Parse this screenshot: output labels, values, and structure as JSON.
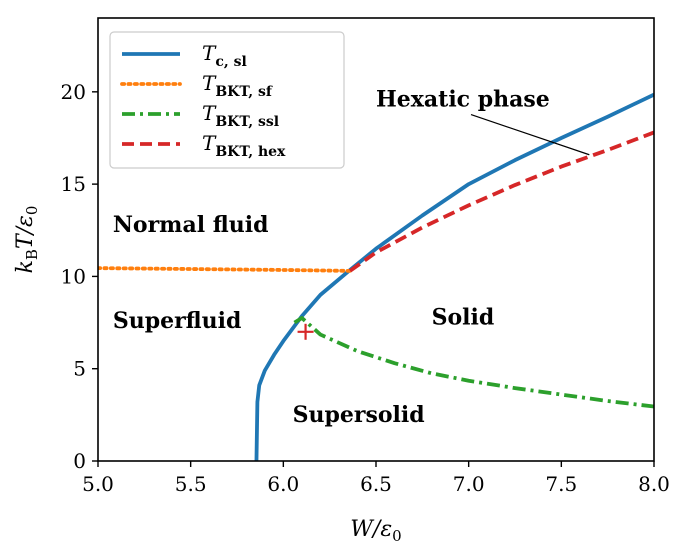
{
  "chart_data": {
    "type": "line",
    "title": "",
    "xlabel": "W/ε0",
    "ylabel": "kBT/ε0",
    "xlim": [
      5.0,
      8.0
    ],
    "ylim": [
      0,
      24
    ],
    "xticks": [
      5.0,
      5.5,
      6.0,
      6.5,
      7.0,
      7.5,
      8.0
    ],
    "xtick_labels": [
      "5.0",
      "5.5",
      "6.0",
      "6.5",
      "7.0",
      "7.5",
      "8.0"
    ],
    "yticks": [
      0,
      5,
      10,
      15,
      20
    ],
    "ytick_labels": [
      "0",
      "5",
      "10",
      "15",
      "20"
    ],
    "legend_position": "top-left",
    "series": [
      {
        "name": "T_c,sl",
        "label_main": "T",
        "label_sub": "c, sl",
        "color": "#1f77b4",
        "style": "solid",
        "x": [
          5.855,
          5.86,
          5.87,
          5.9,
          5.95,
          6.0,
          6.1,
          6.2,
          6.36,
          6.5,
          6.75,
          7.0,
          7.25,
          7.5,
          7.75,
          8.0
        ],
        "y": [
          0.0,
          3.2,
          4.1,
          4.9,
          5.75,
          6.5,
          7.85,
          9.0,
          10.35,
          11.5,
          13.3,
          15.0,
          16.3,
          17.5,
          18.65,
          19.85
        ]
      },
      {
        "name": "T_BKT,sf",
        "label_main": "T",
        "label_sub": "BKT, sf",
        "color": "#ff7f0e",
        "style": "dotted",
        "x": [
          5.0,
          5.5,
          6.0,
          6.36
        ],
        "y": [
          10.45,
          10.4,
          10.35,
          10.3
        ]
      },
      {
        "name": "T_BKT,ssl",
        "label_main": "T",
        "label_sub": "BKT, ssl",
        "color": "#2ca02c",
        "style": "dashdot",
        "x": [
          6.06,
          6.1,
          6.2,
          6.4,
          6.6,
          6.8,
          7.0,
          7.25,
          7.5,
          7.75,
          8.0
        ],
        "y": [
          7.5,
          7.75,
          6.85,
          5.95,
          5.3,
          4.75,
          4.35,
          3.95,
          3.6,
          3.25,
          2.95
        ]
      },
      {
        "name": "T_BKT,hex",
        "label_main": "T",
        "label_sub": "BKT, hex",
        "color": "#d62728",
        "style": "dashed",
        "x": [
          6.36,
          6.5,
          6.75,
          7.0,
          7.25,
          7.5,
          7.75,
          8.0
        ],
        "y": [
          10.3,
          11.3,
          12.65,
          13.85,
          14.95,
          15.95,
          16.85,
          17.8
        ]
      }
    ],
    "marker": {
      "type": "plus",
      "color": "#d62728",
      "x": 6.12,
      "y": 7.0
    },
    "annotations": [
      {
        "id": "hexatic",
        "text": "Hexatic phase",
        "x": 6.5,
        "y": 19.2,
        "arrow_to": [
          7.5,
          16.7
        ]
      },
      {
        "id": "normal-fluid",
        "text": "Normal fluid",
        "x": 5.08,
        "y": 12.4
      },
      {
        "id": "superfluid",
        "text": "Superfluid",
        "x": 5.08,
        "y": 7.2
      },
      {
        "id": "solid",
        "text": "Solid",
        "x": 6.8,
        "y": 7.4
      },
      {
        "id": "supersolid",
        "text": "Supersolid",
        "x": 6.05,
        "y": 2.1
      }
    ]
  }
}
